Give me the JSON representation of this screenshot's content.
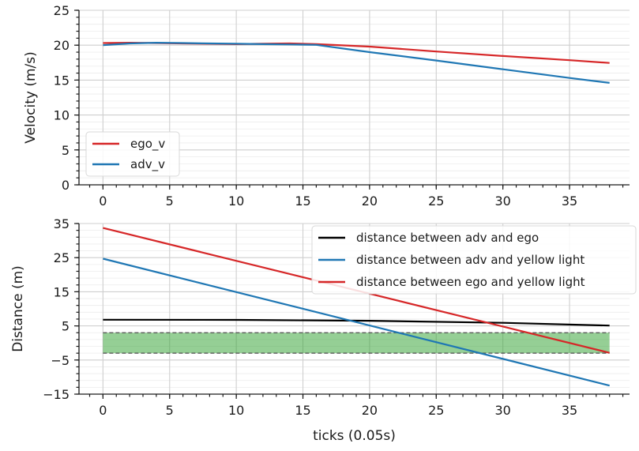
{
  "chart_data": [
    {
      "type": "line",
      "ylabel": "Velocity (m/s)",
      "xlabel": "",
      "xlim": [
        -1.8,
        39.5
      ],
      "ylim": [
        0,
        25
      ],
      "xticks": [
        0,
        5,
        10,
        15,
        20,
        25,
        30,
        35
      ],
      "yticks": [
        0,
        5,
        10,
        15,
        20,
        25
      ],
      "xtick_labels": [
        "0",
        "5",
        "10",
        "15",
        "20",
        "25",
        "30",
        "35"
      ],
      "ytick_labels": [
        "0",
        "5",
        "10",
        "15",
        "20",
        "25"
      ],
      "grid": true,
      "legend_position": "lower-left",
      "series": [
        {
          "name": "ego_v",
          "color": "#d62728",
          "x": [
            0,
            2,
            4,
            6,
            8,
            10,
            12,
            14,
            16,
            20,
            25,
            30,
            35,
            38
          ],
          "y": [
            20.3,
            20.35,
            20.3,
            20.25,
            20.2,
            20.15,
            20.2,
            20.25,
            20.15,
            19.8,
            19.1,
            18.45,
            17.85,
            17.45
          ]
        },
        {
          "name": "adv_v",
          "color": "#1f77b4",
          "x": [
            0,
            2,
            4,
            6,
            8,
            10,
            12,
            14,
            16,
            20,
            25,
            30,
            35,
            38
          ],
          "y": [
            20.0,
            20.25,
            20.35,
            20.3,
            20.25,
            20.2,
            20.15,
            20.1,
            20.05,
            19.0,
            17.8,
            16.55,
            15.3,
            14.6
          ]
        }
      ]
    },
    {
      "type": "line",
      "ylabel": "Distance (m)",
      "xlabel": "ticks (0.05s)",
      "xlim": [
        -1.8,
        39.5
      ],
      "ylim": [
        -15,
        35
      ],
      "xticks": [
        0,
        5,
        10,
        15,
        20,
        25,
        30,
        35
      ],
      "yticks": [
        -15,
        -5,
        5,
        15,
        25,
        35
      ],
      "xtick_labels": [
        "0",
        "5",
        "10",
        "15",
        "20",
        "25",
        "30",
        "35"
      ],
      "ytick_labels": [
        "−15",
        "−5",
        "5",
        "15",
        "25",
        "35"
      ],
      "grid": true,
      "legend_position": "upper-right",
      "band": {
        "y_low": -3,
        "y_high": 3,
        "x_start": 0,
        "x_end": 38,
        "color": "#2ca02c"
      },
      "series": [
        {
          "name": "distance between adv and ego",
          "color": "#000000",
          "x": [
            0,
            10,
            20,
            30,
            38
          ],
          "y": [
            6.8,
            6.75,
            6.5,
            5.9,
            5.1
          ]
        },
        {
          "name": "distance between adv and yellow light",
          "color": "#1f77b4",
          "x": [
            0,
            38
          ],
          "y": [
            24.7,
            -12.5
          ]
        },
        {
          "name": "distance between ego and yellow light",
          "color": "#d62728",
          "x": [
            0,
            38
          ],
          "y": [
            33.7,
            -2.9
          ]
        }
      ]
    }
  ]
}
